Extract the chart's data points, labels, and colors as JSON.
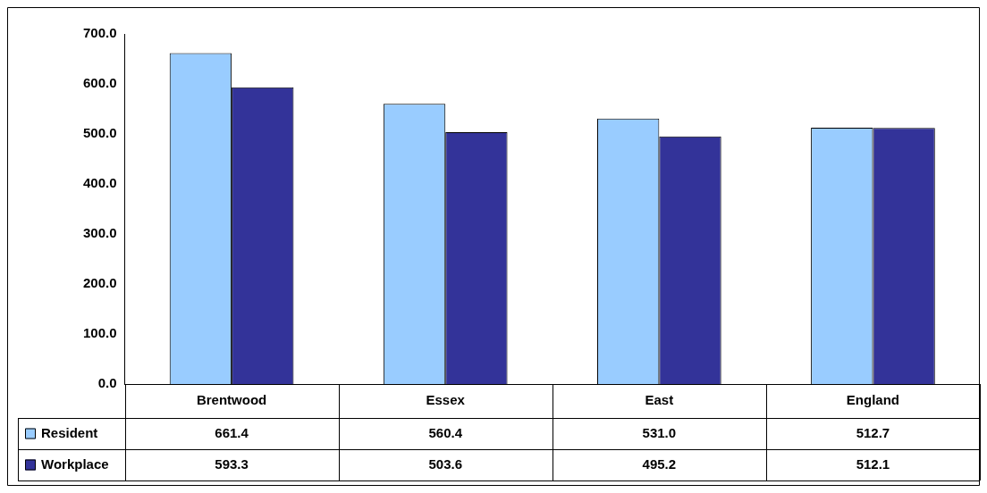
{
  "chart_data": {
    "type": "bar",
    "categories": [
      "Brentwood",
      "Essex",
      "East",
      "England"
    ],
    "series": [
      {
        "name": "Resident",
        "color": "#99ccff",
        "values": [
          661.4,
          560.4,
          531.0,
          512.7
        ],
        "value_labels": [
          "661.4",
          "560.4",
          "531.0",
          "512.7"
        ]
      },
      {
        "name": "Workplace",
        "color": "#333399",
        "values": [
          593.3,
          503.6,
          495.2,
          512.1
        ],
        "value_labels": [
          "593.3",
          "503.6",
          "495.2",
          "512.1"
        ]
      }
    ],
    "ylim": [
      0,
      700
    ],
    "yticks": [
      {
        "value": 0,
        "label": "0.0"
      },
      {
        "value": 100,
        "label": "100.0"
      },
      {
        "value": 200,
        "label": "200.0"
      },
      {
        "value": 300,
        "label": "300.0"
      },
      {
        "value": 400,
        "label": "400.0"
      },
      {
        "value": 500,
        "label": "500.0"
      },
      {
        "value": 600,
        "label": "600.0"
      },
      {
        "value": 700,
        "label": "700.0"
      }
    ],
    "grid": false,
    "legend": "bottom left"
  }
}
